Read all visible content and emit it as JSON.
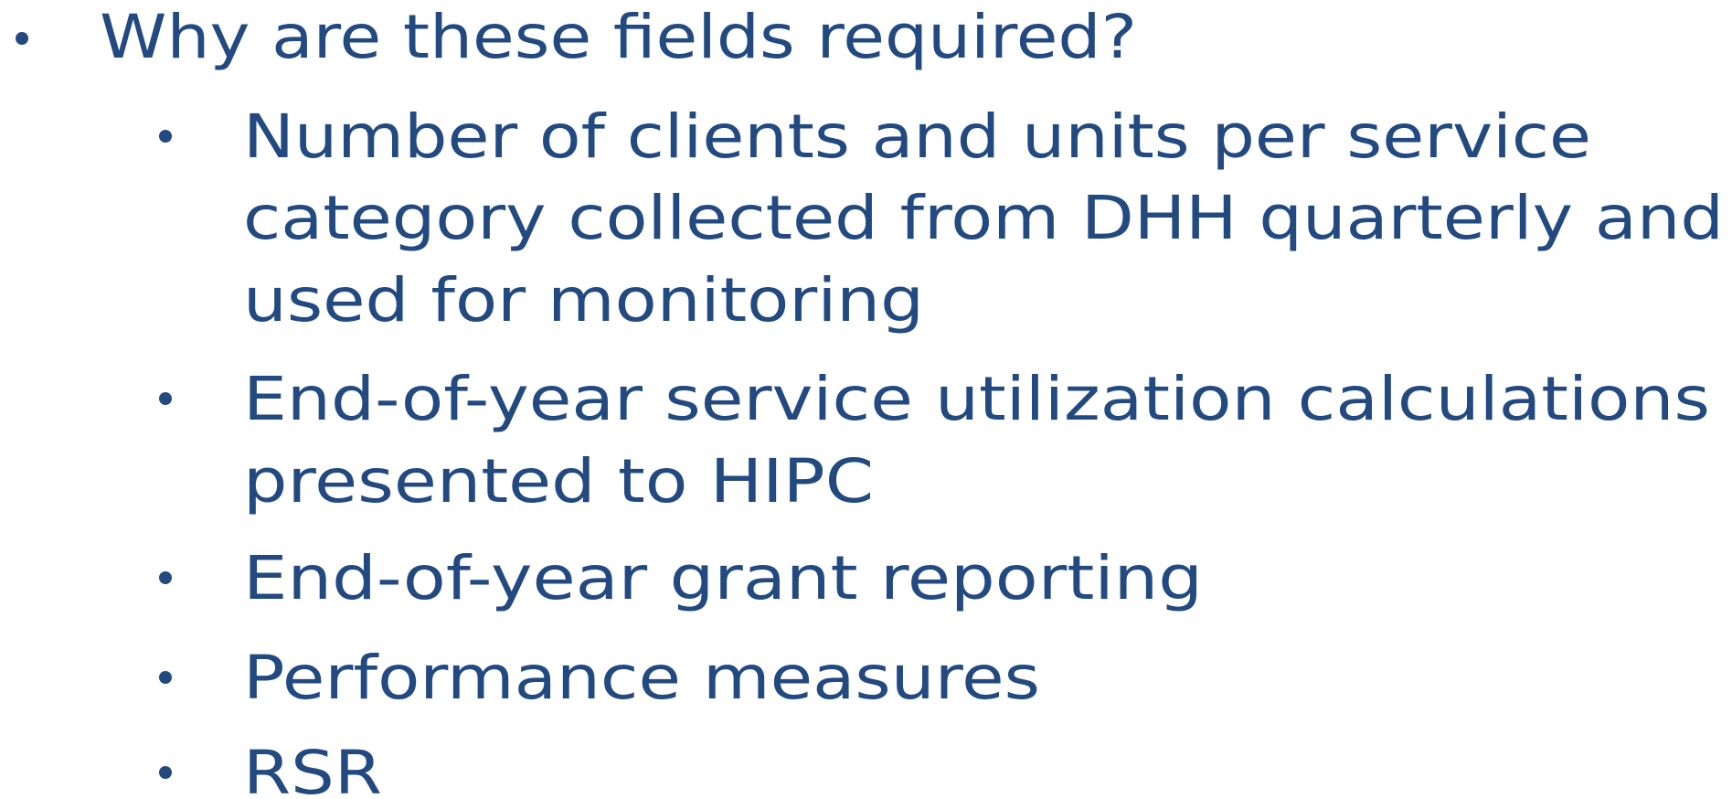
{
  "list": {
    "heading": "Why are these fields required?",
    "items": [
      {
        "lines": [
          "Number of clients and units per service",
          "category collected from DHH quarterly and",
          "used for monitoring"
        ]
      },
      {
        "lines": [
          "End-of-year service utilization calculations",
          "presented to HIPC"
        ]
      },
      {
        "lines": [
          "End-of-year grant reporting"
        ]
      },
      {
        "lines": [
          "Performance measures"
        ]
      },
      {
        "lines": [
          "RSR"
        ]
      }
    ]
  }
}
